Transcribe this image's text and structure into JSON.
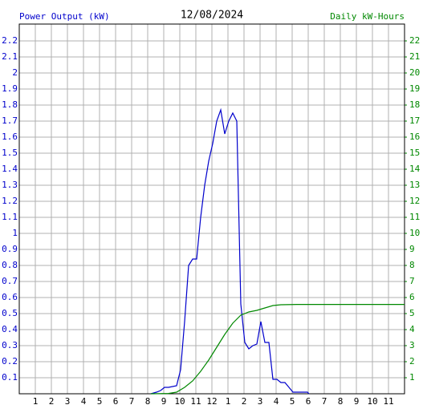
{
  "chart_data": {
    "type": "line",
    "title": "12/08/2024",
    "y_label": "Power Output (kW)",
    "y2_label": "Daily kW-Hours",
    "xlim": [
      0,
      24
    ],
    "xticks": [
      1,
      2,
      3,
      4,
      5,
      6,
      7,
      8,
      9,
      10,
      11,
      12,
      {
        "value": 13,
        "label": "1"
      },
      {
        "value": 14,
        "label": "2"
      },
      {
        "value": 15,
        "label": "3"
      },
      {
        "value": 16,
        "label": "4"
      },
      {
        "value": 17,
        "label": "5"
      },
      {
        "value": 18,
        "label": "6"
      },
      {
        "value": 19,
        "label": "7"
      },
      {
        "value": 20,
        "label": "8"
      },
      {
        "value": 21,
        "label": "9"
      },
      {
        "value": 22,
        "label": "10"
      },
      {
        "value": 23,
        "label": "11"
      }
    ],
    "ylim": [
      0,
      2.305
    ],
    "yticks": [
      0.1,
      0.2,
      0.3,
      0.4,
      0.5,
      0.6,
      0.7,
      0.8,
      0.9,
      1.0,
      1.1,
      1.2,
      1.3,
      1.4,
      1.5,
      1.6,
      1.7,
      1.8,
      1.9,
      2.0,
      2.1,
      2.2
    ],
    "y2lim": [
      0,
      23.05
    ],
    "y2ticks": [
      1,
      2,
      3,
      4,
      5,
      6,
      7,
      8,
      9,
      10,
      11,
      12,
      13,
      14,
      15,
      16,
      17,
      18,
      19,
      20,
      21,
      22
    ],
    "grid": true,
    "series": [
      {
        "name": "Power Output",
        "color": "#0000cc",
        "x": [
          8.2,
          8.55,
          8.8,
          9.05,
          9.3,
          9.8,
          10.05,
          10.3,
          10.55,
          10.8,
          11.05,
          11.3,
          11.55,
          11.8,
          12.05,
          12.3,
          12.55,
          12.8,
          13.05,
          13.3,
          13.55,
          13.8,
          14.05,
          14.3,
          14.55,
          14.8,
          15.05,
          15.3,
          15.55,
          15.8,
          16.05,
          16.3,
          16.55,
          16.8,
          17.05,
          17.95,
          18.05
        ],
        "values": [
          0,
          0.01,
          0.02,
          0.04,
          0.04,
          0.05,
          0.15,
          0.45,
          0.8,
          0.84,
          0.84,
          1.1,
          1.3,
          1.45,
          1.56,
          1.7,
          1.77,
          1.62,
          1.7,
          1.75,
          1.7,
          0.56,
          0.32,
          0.28,
          0.3,
          0.31,
          0.45,
          0.32,
          0.32,
          0.09,
          0.09,
          0.07,
          0.07,
          0.04,
          0.01,
          0.01,
          0
        ]
      },
      {
        "name": "Daily kW-Hours",
        "color": "#008800",
        "axis": "y2",
        "x": [
          8.2,
          9.3,
          9.8,
          10.3,
          10.8,
          11.3,
          11.8,
          12.3,
          12.8,
          13.3,
          13.8,
          14.3,
          14.8,
          15.3,
          15.8,
          16.3,
          17.3,
          24
        ],
        "values": [
          0,
          0.02,
          0.1,
          0.4,
          0.8,
          1.4,
          2.1,
          2.9,
          3.7,
          4.4,
          4.9,
          5.1,
          5.2,
          5.35,
          5.5,
          5.55,
          5.57,
          5.57
        ]
      }
    ]
  }
}
